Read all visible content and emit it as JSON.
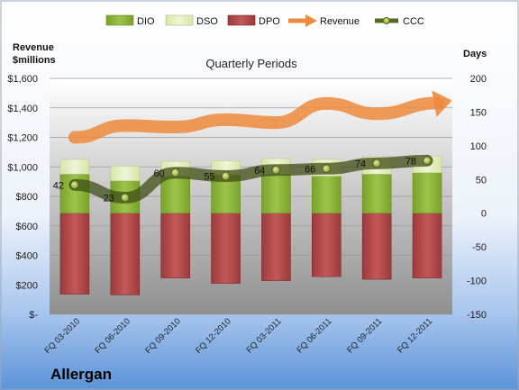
{
  "chart_data": {
    "type": "bar",
    "subtitle": "Quarterly Periods",
    "company": "Allergan",
    "left_axis": {
      "title_line1": "Revenue",
      "title_line2": "$millions",
      "ticks": [
        "$-",
        "$200",
        "$400",
        "$600",
        "$800",
        "$1,000",
        "$1,200",
        "$1,400",
        "$1,600"
      ],
      "ylim": [
        0,
        1600
      ]
    },
    "right_axis": {
      "title": "Days",
      "ticks": [
        "-150",
        "-100",
        "-50",
        "0",
        "50",
        "100",
        "150",
        "200"
      ],
      "ylim": [
        -150,
        200
      ]
    },
    "categories": [
      "FQ 03-2010",
      "FQ 06-2010",
      "FQ 09-2010",
      "FQ 12-2010",
      "FQ 03-2011",
      "FQ 06-2011",
      "FQ 09-2011",
      "FQ 12-2011"
    ],
    "series": [
      {
        "name": "DIO",
        "color": "#8db33a",
        "bottom_days": [
          0,
          0,
          0,
          0,
          0,
          0,
          0,
          0
        ],
        "top_days": [
          58,
          48,
          55,
          57,
          58,
          55,
          58,
          60
        ]
      },
      {
        "name": "DSO",
        "color": "#e2eec0",
        "bottom_days": [
          58,
          48,
          55,
          57,
          58,
          55,
          58,
          60
        ],
        "top_days": [
          80,
          70,
          77,
          78,
          81,
          80,
          84,
          85
        ]
      },
      {
        "name": "DPO",
        "color": "#b44a4b",
        "bottom_days": [
          -120,
          -121,
          -96,
          -104,
          -100,
          -94,
          -98,
          -96
        ],
        "top_days": [
          0,
          0,
          0,
          0,
          0,
          0,
          0,
          0
        ]
      },
      {
        "name": "Revenue",
        "color": "#ee8a3c",
        "values": [
          1200,
          1280,
          1270,
          1320,
          1300,
          1430,
          1360,
          1420
        ]
      },
      {
        "name": "CCC",
        "color": "#4c5a1e",
        "values": [
          42,
          23,
          60,
          55,
          64,
          66,
          74,
          78
        ]
      }
    ],
    "ccc_labels": [
      "42",
      "23",
      "60",
      "55",
      "64",
      "66",
      "74",
      "78"
    ],
    "legend_position": "top",
    "grid": true,
    "colors": {
      "bg_top": "#ffffff",
      "bg_bottom": "#5b93d8",
      "plot_top": "#ffffff",
      "plot_bottom": "#909090"
    }
  }
}
